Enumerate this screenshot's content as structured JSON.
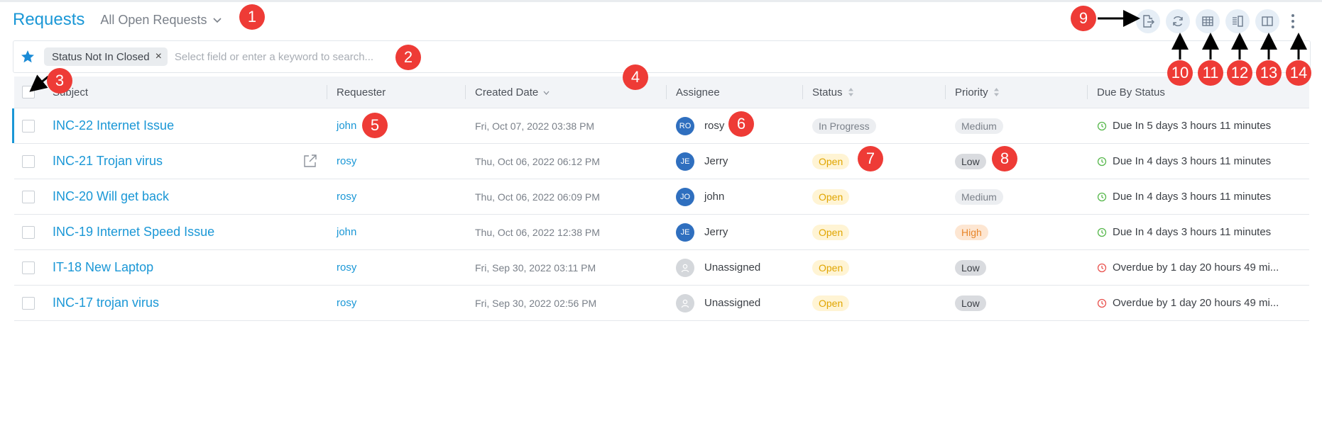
{
  "header": {
    "title": "Requests",
    "view": "All Open Requests"
  },
  "filter": {
    "chip": "Status Not In Closed",
    "chip_remove": "×",
    "placeholder": "Select field or enter a keyword to search..."
  },
  "columns": [
    "Subject",
    "Requester",
    "Created Date",
    "Assignee",
    "Status",
    "Priority",
    "Due By Status"
  ],
  "rows": [
    {
      "subject": "INC-22 Internet Issue",
      "requester": "john",
      "created": "Fri, Oct 07, 2022 03:38 PM",
      "assignee": {
        "initials": "RO",
        "name": "rosy"
      },
      "status": "In Progress",
      "priority": "Medium",
      "due": "Due In 5 days 3 hours 11 minutes"
    },
    {
      "subject": "INC-21 Trojan virus",
      "requester": "rosy",
      "created": "Thu, Oct 06, 2022 06:12 PM",
      "assignee": {
        "initials": "JE",
        "name": "Jerry"
      },
      "status": "Open",
      "priority": "Low",
      "due": "Due In 4 days 3 hours 11 minutes"
    },
    {
      "subject": "INC-20 Will get back",
      "requester": "rosy",
      "created": "Thu, Oct 06, 2022 06:09 PM",
      "assignee": {
        "initials": "JO",
        "name": "john"
      },
      "status": "Open",
      "priority": "Medium",
      "due": "Due In 4 days 3 hours 11 minutes"
    },
    {
      "subject": "INC-19 Internet Speed Issue",
      "requester": "john",
      "created": "Thu, Oct 06, 2022 12:38 PM",
      "assignee": {
        "initials": "JE",
        "name": "Jerry"
      },
      "status": "Open",
      "priority": "High",
      "due": "Due In 4 days 3 hours 11 minutes"
    },
    {
      "subject": "IT-18 New Laptop",
      "requester": "rosy",
      "created": "Fri, Sep 30, 2022 03:11 PM",
      "assignee": {
        "initials": "",
        "name": "Unassigned"
      },
      "status": "Open",
      "priority": "Low",
      "due": "Overdue by 1 day 20 hours 49 mi..."
    },
    {
      "subject": "INC-17 trojan virus",
      "requester": "rosy",
      "created": "Fri, Sep 30, 2022 02:56 PM",
      "assignee": {
        "initials": "",
        "name": "Unassigned"
      },
      "status": "Open",
      "priority": "Low",
      "due": "Overdue by 1 day 20 hours 49 mi..."
    }
  ],
  "annotations": [
    "1",
    "2",
    "3",
    "4",
    "5",
    "6",
    "7",
    "8",
    "9",
    "10",
    "11",
    "12",
    "13",
    "14"
  ],
  "colors": {
    "accent": "#1a97d6",
    "annotation": "#ee3b36",
    "open": "#e0a500",
    "high": "#e8862b",
    "due_ok": "#58b84d",
    "overdue": "#e9534f"
  }
}
